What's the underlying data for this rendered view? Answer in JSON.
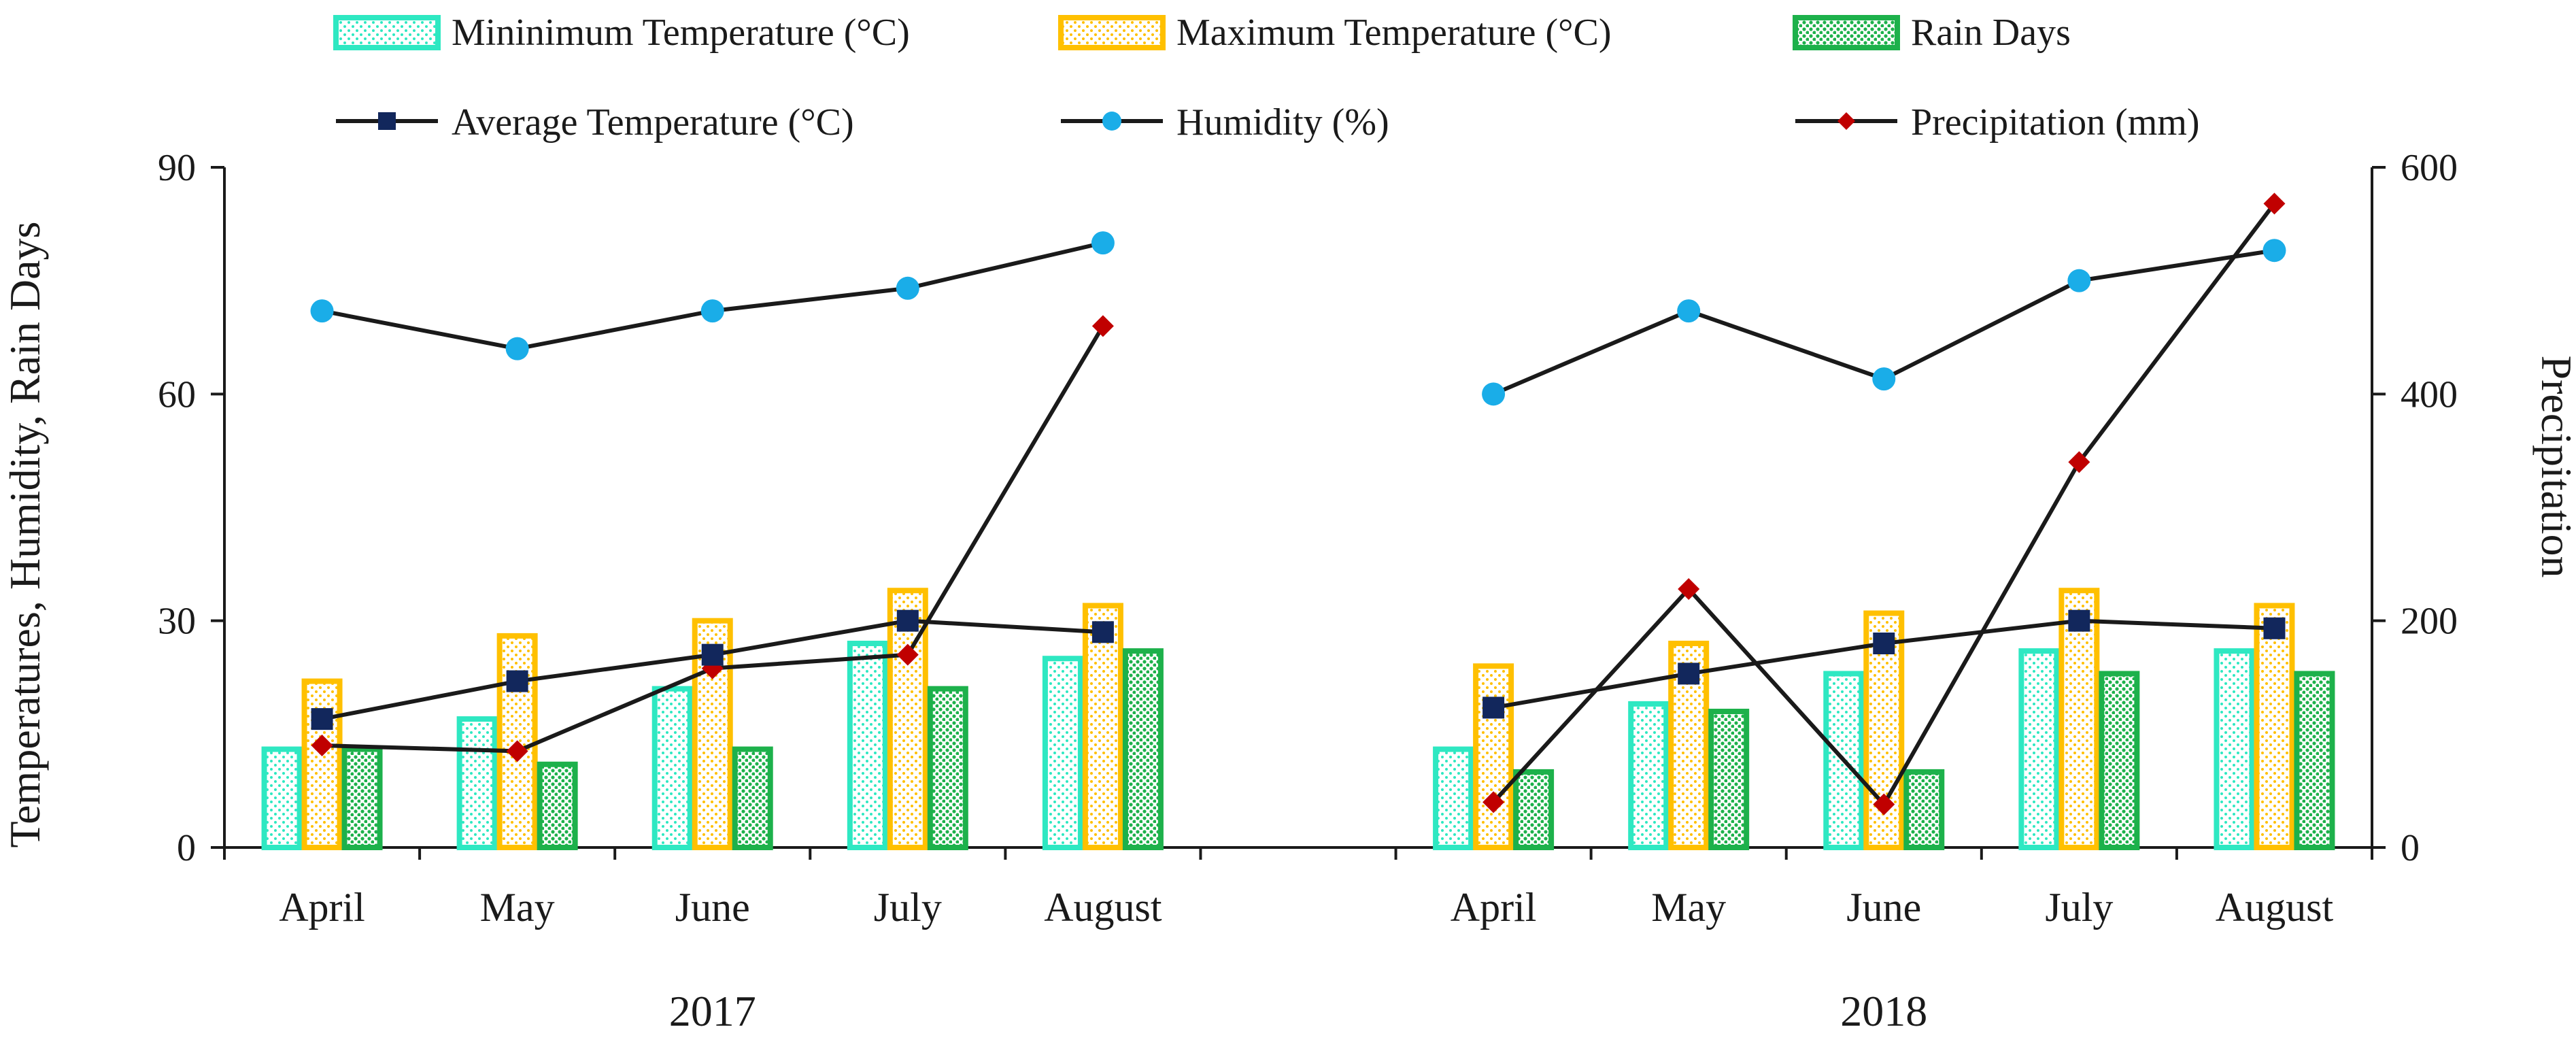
{
  "chart_data": {
    "type": "bar",
    "title": "",
    "ylabel_left": "Temperatures, Humidity, Rain Days",
    "ylabel_right": "Precipitation",
    "ylim_left": [
      0,
      90
    ],
    "yticks_left": [
      "0",
      "30",
      "60",
      "90"
    ],
    "ylim_right": [
      0,
      600
    ],
    "yticks_right": [
      "0",
      "200",
      "400",
      "600"
    ],
    "groups": [
      {
        "label": "2017",
        "categories": [
          "April",
          "May",
          "June",
          "July",
          "August"
        ]
      },
      {
        "label": "2018",
        "categories": [
          "April",
          "May",
          "June",
          "July",
          "August"
        ]
      }
    ],
    "bar_series": [
      {
        "name": "Mininimum Temperature (°C)",
        "color": "#2EE8C2",
        "values": [
          13,
          17,
          21,
          27,
          25,
          13,
          19,
          23,
          26,
          26
        ]
      },
      {
        "name": "Maximum Temperature (°C)",
        "color": "#FFC000",
        "values": [
          22,
          28,
          30,
          34,
          32,
          24,
          27,
          31,
          34,
          32
        ]
      },
      {
        "name": "Rain Days",
        "color": "#1DB14B",
        "values": [
          13,
          11,
          13,
          21,
          26,
          10,
          18,
          10,
          23,
          23
        ]
      }
    ],
    "line_series": [
      {
        "name": "Average Temperature (°C)",
        "axis": "left",
        "marker": "square",
        "marker_color": "#12275C",
        "values": [
          17,
          22,
          25.5,
          30,
          28.5,
          18.5,
          23,
          27,
          30,
          29
        ]
      },
      {
        "name": "Humidity (%)",
        "axis": "left",
        "marker": "circle",
        "marker_color": "#1AADE8",
        "values": [
          71,
          66,
          71,
          74,
          80,
          60,
          71,
          62,
          75,
          79
        ]
      },
      {
        "name": "Precipitation (mm)",
        "axis": "right",
        "marker": "diamond",
        "marker_color": "#C00000",
        "values": [
          90,
          85,
          158,
          170,
          460,
          40,
          228,
          38,
          340,
          568
        ]
      }
    ],
    "legend": "top"
  }
}
